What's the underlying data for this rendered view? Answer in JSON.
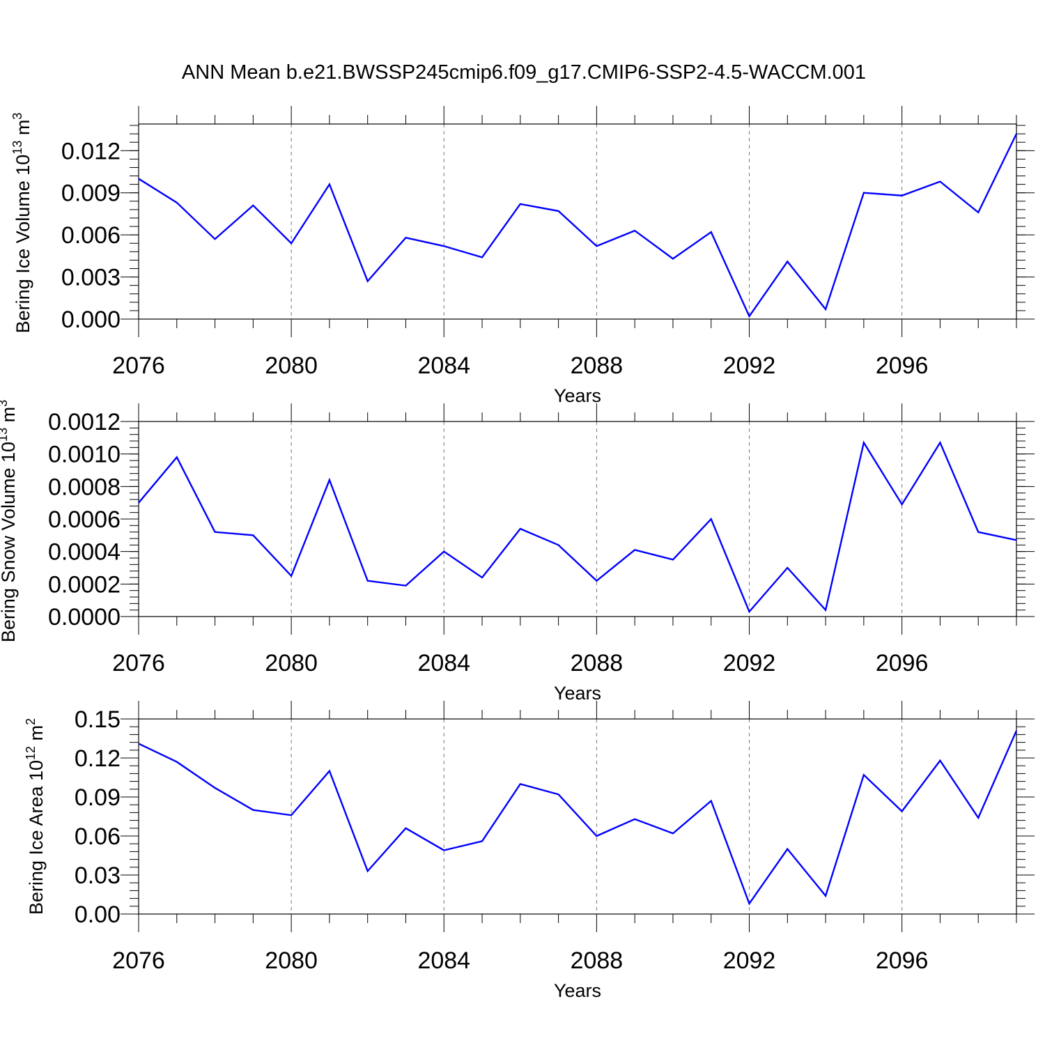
{
  "title": "ANN Mean b.e21.BWSSP245cmip6.f09_g17.CMIP6-SSP2-4.5-WACCM.001",
  "chart_data": [
    {
      "type": "line",
      "xlabel": "Years",
      "ylabel": {
        "main": "Bering Ice Volume 10",
        "exp": "13",
        "unit": " m",
        "unit_exp": "3"
      },
      "xlim": [
        2076,
        2099
      ],
      "ylim": [
        -0.0,
        0.0139
      ],
      "xticks": [
        2076,
        2080,
        2084,
        2088,
        2092,
        2096
      ],
      "yticks": [
        "0.000",
        "0.003",
        "0.006",
        "0.009",
        "0.012"
      ],
      "grid": "x dashed",
      "x": [
        2076,
        2077,
        2078,
        2079,
        2080,
        2081,
        2082,
        2083,
        2084,
        2085,
        2086,
        2087,
        2088,
        2089,
        2090,
        2091,
        2092,
        2093,
        2094,
        2095,
        2096,
        2097,
        2098,
        2099
      ],
      "values": [
        0.01,
        0.0083,
        0.0057,
        0.0081,
        0.0054,
        0.0096,
        0.0027,
        0.0058,
        0.0052,
        0.0044,
        0.0082,
        0.0077,
        0.0052,
        0.0063,
        0.0043,
        0.0062,
        0.0002,
        0.0041,
        0.0007,
        0.009,
        0.0088,
        0.0098,
        0.0076,
        0.0132
      ],
      "color": "#0000ff"
    },
    {
      "type": "line",
      "xlabel": "Years",
      "ylabel": {
        "main": "Bering Snow Volume 10",
        "exp": "13",
        "unit": " m",
        "unit_exp": "3"
      },
      "xlim": [
        2076,
        2099
      ],
      "ylim": [
        0.0,
        0.0012
      ],
      "xticks": [
        2076,
        2080,
        2084,
        2088,
        2092,
        2096
      ],
      "yticks": [
        "0.0000",
        "0.0002",
        "0.0004",
        "0.0006",
        "0.0008",
        "0.0010",
        "0.0012"
      ],
      "grid": "x dashed",
      "x": [
        2076,
        2077,
        2078,
        2079,
        2080,
        2081,
        2082,
        2083,
        2084,
        2085,
        2086,
        2087,
        2088,
        2089,
        2090,
        2091,
        2092,
        2093,
        2094,
        2095,
        2096,
        2097,
        2098,
        2099
      ],
      "values": [
        0.0007,
        0.00098,
        0.00052,
        0.0005,
        0.00025,
        0.00084,
        0.00022,
        0.00019,
        0.0004,
        0.00024,
        0.00054,
        0.00044,
        0.00022,
        0.00041,
        0.00035,
        0.0006,
        3e-05,
        0.0003,
        4e-05,
        0.00107,
        0.00069,
        0.00107,
        0.00052,
        0.00047
      ],
      "color": "#0000ff"
    },
    {
      "type": "line",
      "xlabel": "Years",
      "ylabel": {
        "main": "Bering Ice Area 10",
        "exp": "12",
        "unit": " m",
        "unit_exp": "2"
      },
      "xlim": [
        2076,
        2099
      ],
      "ylim": [
        0.0,
        0.15
      ],
      "xticks": [
        2076,
        2080,
        2084,
        2088,
        2092,
        2096
      ],
      "yticks": [
        "0.00",
        "0.03",
        "0.06",
        "0.09",
        "0.12",
        "0.15"
      ],
      "grid": "x dashed",
      "x": [
        2076,
        2077,
        2078,
        2079,
        2080,
        2081,
        2082,
        2083,
        2084,
        2085,
        2086,
        2087,
        2088,
        2089,
        2090,
        2091,
        2092,
        2093,
        2094,
        2095,
        2096,
        2097,
        2098,
        2099
      ],
      "values": [
        0.131,
        0.117,
        0.097,
        0.08,
        0.076,
        0.11,
        0.033,
        0.066,
        0.049,
        0.056,
        0.1,
        0.092,
        0.06,
        0.073,
        0.062,
        0.087,
        0.008,
        0.05,
        0.014,
        0.107,
        0.079,
        0.118,
        0.074,
        0.141
      ],
      "color": "#0000ff"
    }
  ]
}
